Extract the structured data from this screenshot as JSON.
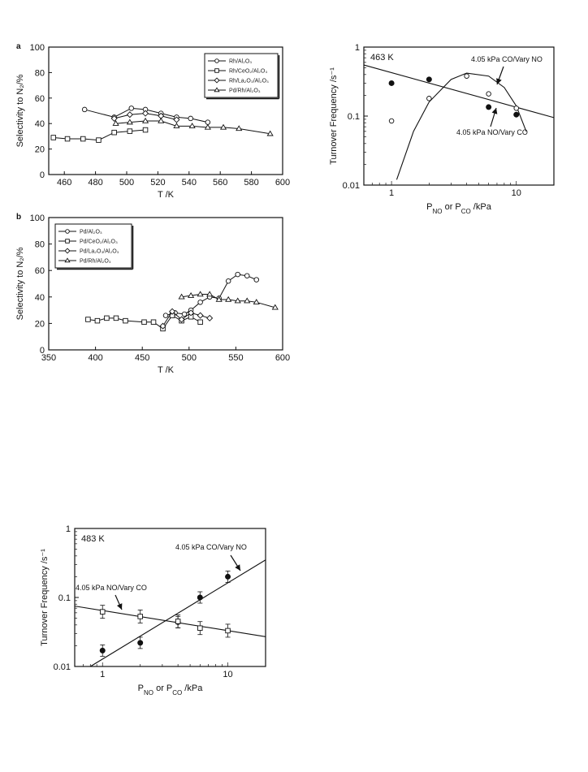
{
  "colors": {
    "line": "#111111",
    "marker_fill": "#ffffff",
    "background": "#ffffff"
  },
  "chart_data": [
    {
      "id": "a-left",
      "type": "line",
      "panel_label": "a",
      "xlabel": "T /K",
      "ylabel": "Selectivity to N₂/%",
      "xlim": [
        450,
        600
      ],
      "ylim": [
        0,
        100
      ],
      "xticks": [
        460,
        480,
        500,
        520,
        540,
        560,
        580,
        600
      ],
      "yticks": [
        0,
        20,
        40,
        60,
        80,
        100
      ],
      "grid": false,
      "legend_position": "top-right",
      "series": [
        {
          "name": "Rh/Al₂O₃",
          "marker": "circle",
          "x": [
            473,
            492,
            503,
            512,
            522,
            532,
            541,
            552
          ],
          "y": [
            51,
            45,
            52,
            51,
            48,
            45,
            44,
            41
          ]
        },
        {
          "name": "Rh/CeO₂/Al₂O₃",
          "marker": "square",
          "x": [
            453,
            462,
            472,
            482,
            492,
            502,
            512
          ],
          "y": [
            29,
            28,
            28,
            27,
            33,
            34,
            35
          ]
        },
        {
          "name": "Rh/La₂O₃/Al₂O₃",
          "marker": "diamond",
          "x": [
            492,
            502,
            512,
            522,
            532
          ],
          "y": [
            44,
            47,
            48,
            46,
            43
          ]
        },
        {
          "name": "Pd/Rh/Al₂O₃",
          "marker": "triangle",
          "x": [
            493,
            502,
            512,
            522,
            532,
            542,
            552,
            562,
            572,
            592
          ],
          "y": [
            40,
            41,
            42,
            42,
            38,
            38,
            37,
            37,
            36,
            32
          ]
        }
      ]
    },
    {
      "id": "a-right",
      "type": "scatter",
      "xlabel": "P_NO or P_CO /kPa",
      "ylabel": "Turnover Frequency /s⁻¹",
      "xscale": "log",
      "yscale": "log",
      "xlim": [
        0.6,
        20
      ],
      "ylim": [
        0.01,
        1
      ],
      "xticks": [
        1,
        10
      ],
      "yticks": [
        0.01,
        0.1,
        1
      ],
      "temperature_label": "463 K",
      "grid": false,
      "annotations": [
        "4.05 kPa CO/Vary NO",
        "4.05 kPa NO/Vary CO"
      ],
      "series": [
        {
          "name": "4.05 kPa NO/Vary CO",
          "marker": "filled-circle",
          "x": [
            1,
            2,
            6,
            10
          ],
          "y": [
            0.3,
            0.34,
            0.135,
            0.105
          ],
          "fit": {
            "kind": "line",
            "x": [
              0.6,
              20
            ],
            "y": [
              0.55,
              0.095
            ]
          }
        },
        {
          "name": "4.05 kPa CO/Vary NO",
          "marker": "open-circle",
          "x": [
            1,
            2,
            4,
            6,
            10
          ],
          "y": [
            0.085,
            0.18,
            0.38,
            0.21,
            0.13
          ],
          "fit": {
            "kind": "curve",
            "x": [
              1.1,
              1.5,
              2,
              3,
              4,
              6,
              8,
              10,
              12
            ],
            "y": [
              0.012,
              0.06,
              0.16,
              0.34,
              0.42,
              0.38,
              0.26,
              0.14,
              0.06
            ]
          }
        }
      ]
    },
    {
      "id": "b",
      "type": "line",
      "panel_label": "b",
      "xlabel": "T /K",
      "ylabel": "Selectivity to N₂/%",
      "xlim": [
        350,
        600
      ],
      "ylim": [
        0,
        100
      ],
      "xticks": [
        350,
        400,
        450,
        500,
        550,
        600
      ],
      "yticks": [
        0,
        20,
        40,
        60,
        80,
        100
      ],
      "grid": false,
      "legend_position": "top-left",
      "series": [
        {
          "name": "Pd/Al₂O₃",
          "marker": "circle",
          "x": [
            475,
            485,
            495,
            502,
            512,
            522,
            532,
            542,
            552,
            562,
            572
          ],
          "y": [
            26,
            28,
            27,
            30,
            36,
            40,
            39,
            52,
            57,
            56,
            53
          ]
        },
        {
          "name": "Pd/CeO₂/Al₂O₃",
          "marker": "square",
          "x": [
            392,
            402,
            412,
            422,
            432,
            452,
            462,
            472,
            482,
            492,
            502,
            512
          ],
          "y": [
            23,
            22,
            24,
            24,
            22,
            21,
            21,
            16,
            26,
            22,
            25,
            21
          ]
        },
        {
          "name": "Pd/La₂O₃/Al₂O₃",
          "marker": "diamond",
          "x": [
            472,
            482,
            492,
            502,
            512,
            522
          ],
          "y": [
            18,
            29,
            23,
            28,
            26,
            24
          ]
        },
        {
          "name": "Pd/Rh/Al₂O₃",
          "marker": "triangle",
          "x": [
            492,
            502,
            512,
            522,
            532,
            542,
            552,
            562,
            572,
            592
          ],
          "y": [
            40,
            41,
            42,
            42,
            38,
            38,
            37,
            37,
            36,
            32
          ]
        }
      ]
    },
    {
      "id": "c",
      "type": "scatter",
      "xlabel": "P_NO or P_CO /kPa",
      "ylabel": "Turnover Frequency /s⁻¹",
      "xscale": "log",
      "yscale": "log",
      "xlim": [
        0.6,
        20
      ],
      "ylim": [
        0.01,
        1
      ],
      "xticks": [
        1,
        10
      ],
      "yticks": [
        0.01,
        0.1,
        1
      ],
      "temperature_label": "483 K",
      "grid": false,
      "annotations": [
        "4.05 kPa CO/Vary NO",
        "4.05 kPa NO/Vary CO"
      ],
      "series": [
        {
          "name": "4.05 kPa CO/Vary NO",
          "marker": "filled-circle",
          "x": [
            1,
            2,
            4,
            6,
            10
          ],
          "y": [
            0.017,
            0.022,
            0.044,
            0.1,
            0.2
          ],
          "fit": {
            "kind": "line",
            "x": [
              0.8,
              20
            ],
            "y": [
              0.01,
              0.35
            ]
          }
        },
        {
          "name": "4.05 kPa NO/Vary CO",
          "marker": "open-square-errorbar",
          "x": [
            1,
            2,
            4,
            6,
            10
          ],
          "y": [
            0.062,
            0.053,
            0.045,
            0.036,
            0.033
          ],
          "fit": {
            "kind": "line",
            "x": [
              0.6,
              20
            ],
            "y": [
              0.075,
              0.027
            ]
          }
        }
      ]
    }
  ]
}
